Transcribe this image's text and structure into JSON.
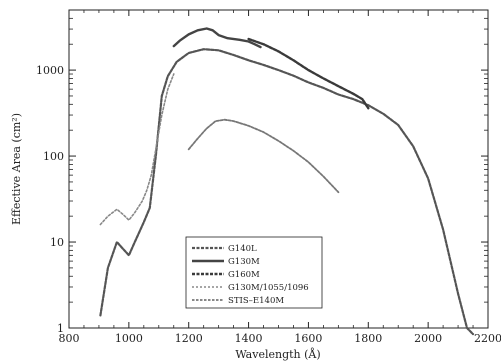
{
  "chart_data": {
    "type": "line",
    "title": "",
    "xlabel": "Wavelength (Å)",
    "ylabel": "Effective Area (cm²)",
    "xlim": [
      800,
      2200
    ],
    "ylim": [
      1,
      5000
    ],
    "yscale": "log",
    "grid": false,
    "legend_position": "bottom-center",
    "x_ticks": [
      800,
      1000,
      1200,
      1400,
      1600,
      1800,
      2000,
      2200
    ],
    "x_tick_labels": [
      "800",
      "1000",
      "1200",
      "1400",
      "1600",
      "1800",
      "2000",
      "2200"
    ],
    "y_ticks": [
      1,
      10,
      100,
      1000
    ],
    "y_tick_labels": [
      "1",
      "10",
      "100",
      "1000"
    ],
    "series": [
      {
        "name": "G140L",
        "color": "#555555",
        "dash": "3,1.5",
        "width": 2.2,
        "x": [
          905,
          930,
          960,
          985,
          1000,
          1020,
          1050,
          1070,
          1090,
          1110,
          1130,
          1160,
          1200,
          1250,
          1300,
          1350,
          1400,
          1450,
          1500,
          1550,
          1600,
          1650,
          1700,
          1750,
          1800,
          1850,
          1900,
          1950,
          2000,
          2050,
          2100,
          2130,
          2150
        ],
        "y": [
          1.4,
          5,
          10,
          8,
          7,
          10,
          17,
          25,
          100,
          500,
          850,
          1250,
          1580,
          1750,
          1700,
          1500,
          1300,
          1150,
          1000,
          860,
          720,
          620,
          520,
          460,
          390,
          310,
          230,
          130,
          55,
          14,
          2.5,
          1,
          0.8
        ]
      },
      {
        "name": "G130M",
        "color": "#444444",
        "dash": "none",
        "width": 2.4,
        "x": [
          1150,
          1170,
          1200,
          1230,
          1260,
          1280,
          1300,
          1330,
          1370,
          1400,
          1420,
          1440
        ],
        "y": [
          1900,
          2200,
          2600,
          2900,
          3050,
          2900,
          2550,
          2350,
          2250,
          2150,
          2000,
          1850
        ]
      },
      {
        "name": "G160M",
        "color": "#3a3a3a",
        "dash": "3,1.5",
        "width": 2.4,
        "x": [
          1400,
          1450,
          1500,
          1550,
          1600,
          1650,
          1700,
          1750,
          1780,
          1800
        ],
        "y": [
          2300,
          2000,
          1650,
          1300,
          1000,
          800,
          650,
          530,
          460,
          360
        ]
      },
      {
        "name": "G130M/1055/1096",
        "color": "#888888",
        "dash": "2,2",
        "width": 1.6,
        "x": [
          905,
          930,
          960,
          980,
          1000,
          1020,
          1045,
          1060,
          1075,
          1090,
          1110,
          1130,
          1150
        ],
        "y": [
          16,
          20,
          24,
          21,
          18,
          22,
          30,
          40,
          60,
          120,
          300,
          600,
          900
        ]
      },
      {
        "name": "STIS–E140M",
        "color": "#777777",
        "dash": "2.5,1.5",
        "width": 1.8,
        "x": [
          1200,
          1230,
          1260,
          1290,
          1320,
          1350,
          1400,
          1450,
          1500,
          1550,
          1600,
          1650,
          1700
        ],
        "y": [
          120,
          160,
          210,
          255,
          265,
          255,
          225,
          190,
          150,
          115,
          85,
          58,
          38
        ]
      }
    ]
  }
}
